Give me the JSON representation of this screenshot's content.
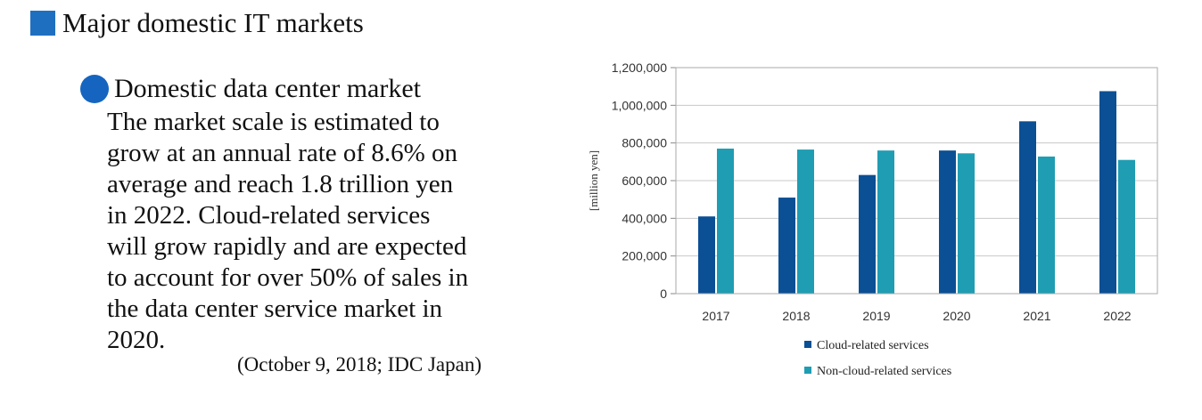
{
  "heading": {
    "title": "Major domestic IT markets"
  },
  "section": {
    "subtitle": "Domestic data center market",
    "body_lines": [
      "The market scale is estimated to",
      "grow at an annual rate of 8.6% on",
      "average and reach 1.8 trillion yen",
      "in 2022. Cloud-related services",
      "will grow rapidly and are expected",
      "to account for over 50% of sales in",
      "the data center service market in",
      "2020."
    ],
    "source": "(October 9, 2018; IDC Japan)"
  },
  "colors": {
    "accent": "#1f6fc1",
    "cloud": "#0b4f94",
    "noncloud": "#1f9db3"
  },
  "chart_data": {
    "type": "bar",
    "categories": [
      "2017",
      "2018",
      "2019",
      "2020",
      "2021",
      "2022"
    ],
    "series": [
      {
        "name": "Cloud-related services",
        "values": [
          410000,
          510000,
          630000,
          760000,
          915000,
          1075000
        ]
      },
      {
        "name": "Non-cloud-related services",
        "values": [
          770000,
          765000,
          760000,
          745000,
          728000,
          710000
        ]
      }
    ],
    "ylabel": "[million yen]",
    "ylim": [
      0,
      1200000
    ],
    "yticks": [
      "0",
      "200,000",
      "400,000",
      "600,000",
      "800,000",
      "1,000,000",
      "1,200,000"
    ],
    "grid": true,
    "legend": "bottom"
  }
}
